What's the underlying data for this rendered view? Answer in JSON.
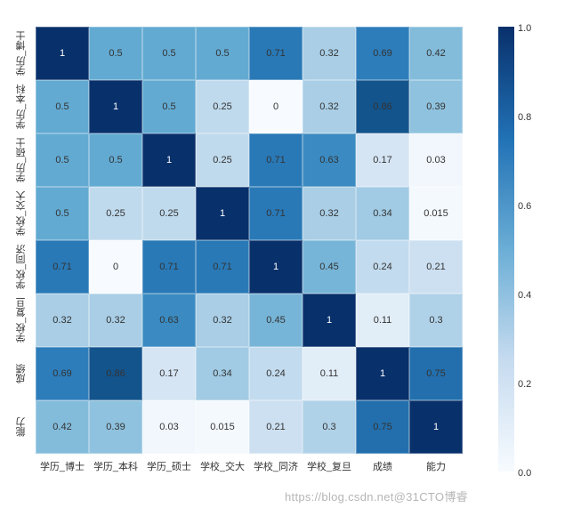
{
  "heatmap": {
    "type": "heatmap",
    "labels": [
      "学历_博士",
      "学历_本科",
      "学历_硕士",
      "学校_交大",
      "学校_同济",
      "学校_复旦",
      "成绩",
      "能力"
    ],
    "x_labels": [
      "学历_博士",
      "学历_本科",
      "学历_硕士",
      "学校_交大",
      "学校_同济",
      "学校_复旦",
      "成绩",
      "能力"
    ],
    "y_labels": [
      "学历_博士",
      "学历_本科",
      "学历_硕士",
      "学校_交大",
      "学校_同济",
      "学校_复旦",
      "成绩",
      "能力"
    ],
    "values": [
      [
        1,
        0.5,
        0.5,
        0.5,
        0.71,
        0.32,
        0.69,
        0.42
      ],
      [
        0.5,
        1,
        0.5,
        0.25,
        0,
        0.32,
        0.86,
        0.39
      ],
      [
        0.5,
        0.5,
        1,
        0.25,
        0.71,
        0.63,
        0.17,
        0.03
      ],
      [
        0.5,
        0.25,
        0.25,
        1,
        0.71,
        0.32,
        0.34,
        0.015
      ],
      [
        0.71,
        0,
        0.71,
        0.71,
        1,
        0.45,
        0.24,
        0.21
      ],
      [
        0.32,
        0.32,
        0.63,
        0.32,
        0.45,
        1,
        0.11,
        0.3
      ],
      [
        0.69,
        0.86,
        0.17,
        0.34,
        0.24,
        0.11,
        1,
        0.75
      ],
      [
        0.42,
        0.39,
        0.03,
        0.015,
        0.21,
        0.3,
        0.75,
        1
      ]
    ],
    "colorscale": {
      "min": 0.0,
      "max": 1.0,
      "stops": [
        {
          "v": 0.0,
          "color": "#f7fbff"
        },
        {
          "v": 0.1,
          "color": "#e3eef8"
        },
        {
          "v": 0.2,
          "color": "#d0e1f2"
        },
        {
          "v": 0.3,
          "color": "#b0d2e8"
        },
        {
          "v": 0.4,
          "color": "#8bc0dd"
        },
        {
          "v": 0.5,
          "color": "#62aad2"
        },
        {
          "v": 0.6,
          "color": "#4292c6"
        },
        {
          "v": 0.7,
          "color": "#2b7bba"
        },
        {
          "v": 0.8,
          "color": "#1b639f"
        },
        {
          "v": 0.9,
          "color": "#0d4a80"
        },
        {
          "v": 1.0,
          "color": "#08306b"
        }
      ]
    },
    "colorbar_ticks": [
      {
        "label": "1.0",
        "value": 1.0
      },
      {
        "label": "0.8",
        "value": 0.8
      },
      {
        "label": "0.6",
        "value": 0.6
      },
      {
        "label": "0.4",
        "value": 0.4
      },
      {
        "label": "0.2",
        "value": 0.2
      },
      {
        "label": "0.0",
        "value": 0.0
      }
    ],
    "background_color": "#ffffff",
    "cell_fontsize": 11,
    "label_fontsize": 11,
    "tick_fontsize": 11,
    "light_text_threshold": 0.9,
    "light_text_color": "#ffffff",
    "dark_text_color": "#333333",
    "watermark": "https://blog.csdn.net@31CTO博睿"
  }
}
